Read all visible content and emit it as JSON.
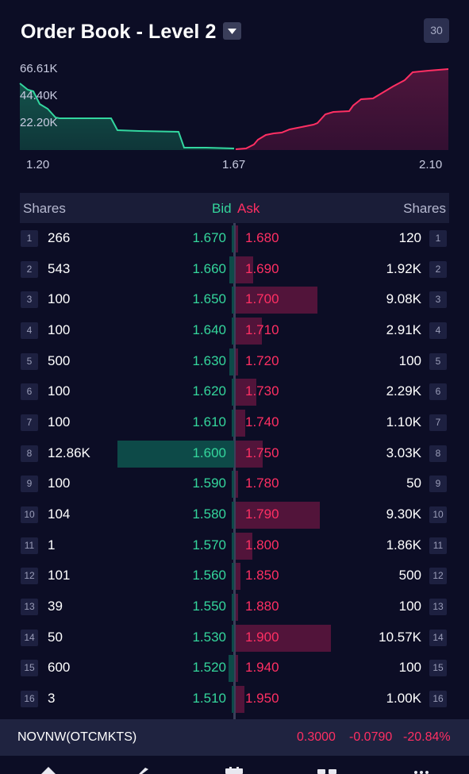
{
  "header": {
    "title": "Order Book - Level 2",
    "timeframe_badge": "30"
  },
  "depth_chart": {
    "y_labels": [
      "66.61K",
      "44.40K",
      "22.20K"
    ],
    "x_labels": [
      "1.20",
      "1.67",
      "2.10"
    ],
    "colors": {
      "bid": "#33d69f",
      "ask": "#ff2f63"
    }
  },
  "table": {
    "headers": {
      "left_shares": "Shares",
      "bid": "Bid",
      "ask": "Ask",
      "right_shares": "Shares"
    },
    "rows": [
      {
        "idx": "1",
        "bid_shares": "266",
        "bid_price": "1.670",
        "ask_price": "1.680",
        "ask_shares": "120"
      },
      {
        "idx": "2",
        "bid_shares": "543",
        "bid_price": "1.660",
        "ask_price": "1.690",
        "ask_shares": "1.92K"
      },
      {
        "idx": "3",
        "bid_shares": "100",
        "bid_price": "1.650",
        "ask_price": "1.700",
        "ask_shares": "9.08K"
      },
      {
        "idx": "4",
        "bid_shares": "100",
        "bid_price": "1.640",
        "ask_price": "1.710",
        "ask_shares": "2.91K"
      },
      {
        "idx": "5",
        "bid_shares": "500",
        "bid_price": "1.630",
        "ask_price": "1.720",
        "ask_shares": "100"
      },
      {
        "idx": "6",
        "bid_shares": "100",
        "bid_price": "1.620",
        "ask_price": "1.730",
        "ask_shares": "2.29K"
      },
      {
        "idx": "7",
        "bid_shares": "100",
        "bid_price": "1.610",
        "ask_price": "1.740",
        "ask_shares": "1.10K"
      },
      {
        "idx": "8",
        "bid_shares": "12.86K",
        "bid_price": "1.600",
        "ask_price": "1.750",
        "ask_shares": "3.03K"
      },
      {
        "idx": "9",
        "bid_shares": "100",
        "bid_price": "1.590",
        "ask_price": "1.780",
        "ask_shares": "50"
      },
      {
        "idx": "10",
        "bid_shares": "104",
        "bid_price": "1.580",
        "ask_price": "1.790",
        "ask_shares": "9.30K"
      },
      {
        "idx": "11",
        "bid_shares": "1",
        "bid_price": "1.570",
        "ask_price": "1.800",
        "ask_shares": "1.86K"
      },
      {
        "idx": "12",
        "bid_shares": "101",
        "bid_price": "1.560",
        "ask_price": "1.850",
        "ask_shares": "500"
      },
      {
        "idx": "13",
        "bid_shares": "39",
        "bid_price": "1.550",
        "ask_price": "1.880",
        "ask_shares": "100"
      },
      {
        "idx": "14",
        "bid_shares": "50",
        "bid_price": "1.530",
        "ask_price": "1.900",
        "ask_shares": "10.57K"
      },
      {
        "idx": "15",
        "bid_shares": "600",
        "bid_price": "1.520",
        "ask_price": "1.940",
        "ask_shares": "100"
      },
      {
        "idx": "16",
        "bid_shares": "3",
        "bid_price": "1.510",
        "ask_price": "1.950",
        "ask_shares": "1.00K"
      }
    ],
    "colors": {
      "bid": "#34d69c",
      "ask": "#ff2f63",
      "bid_bar": "#0d4a48",
      "ask_bar": "#52143a"
    }
  },
  "footer": {
    "ticker": "NOVNW(OTCMKTS)",
    "last": "0.3000",
    "change": "-0.0790",
    "change_pct": "-20.84%"
  },
  "nav_icons": [
    "home-icon",
    "pencil-icon",
    "calendar-icon",
    "watchlist-icon",
    "more-icon"
  ]
}
